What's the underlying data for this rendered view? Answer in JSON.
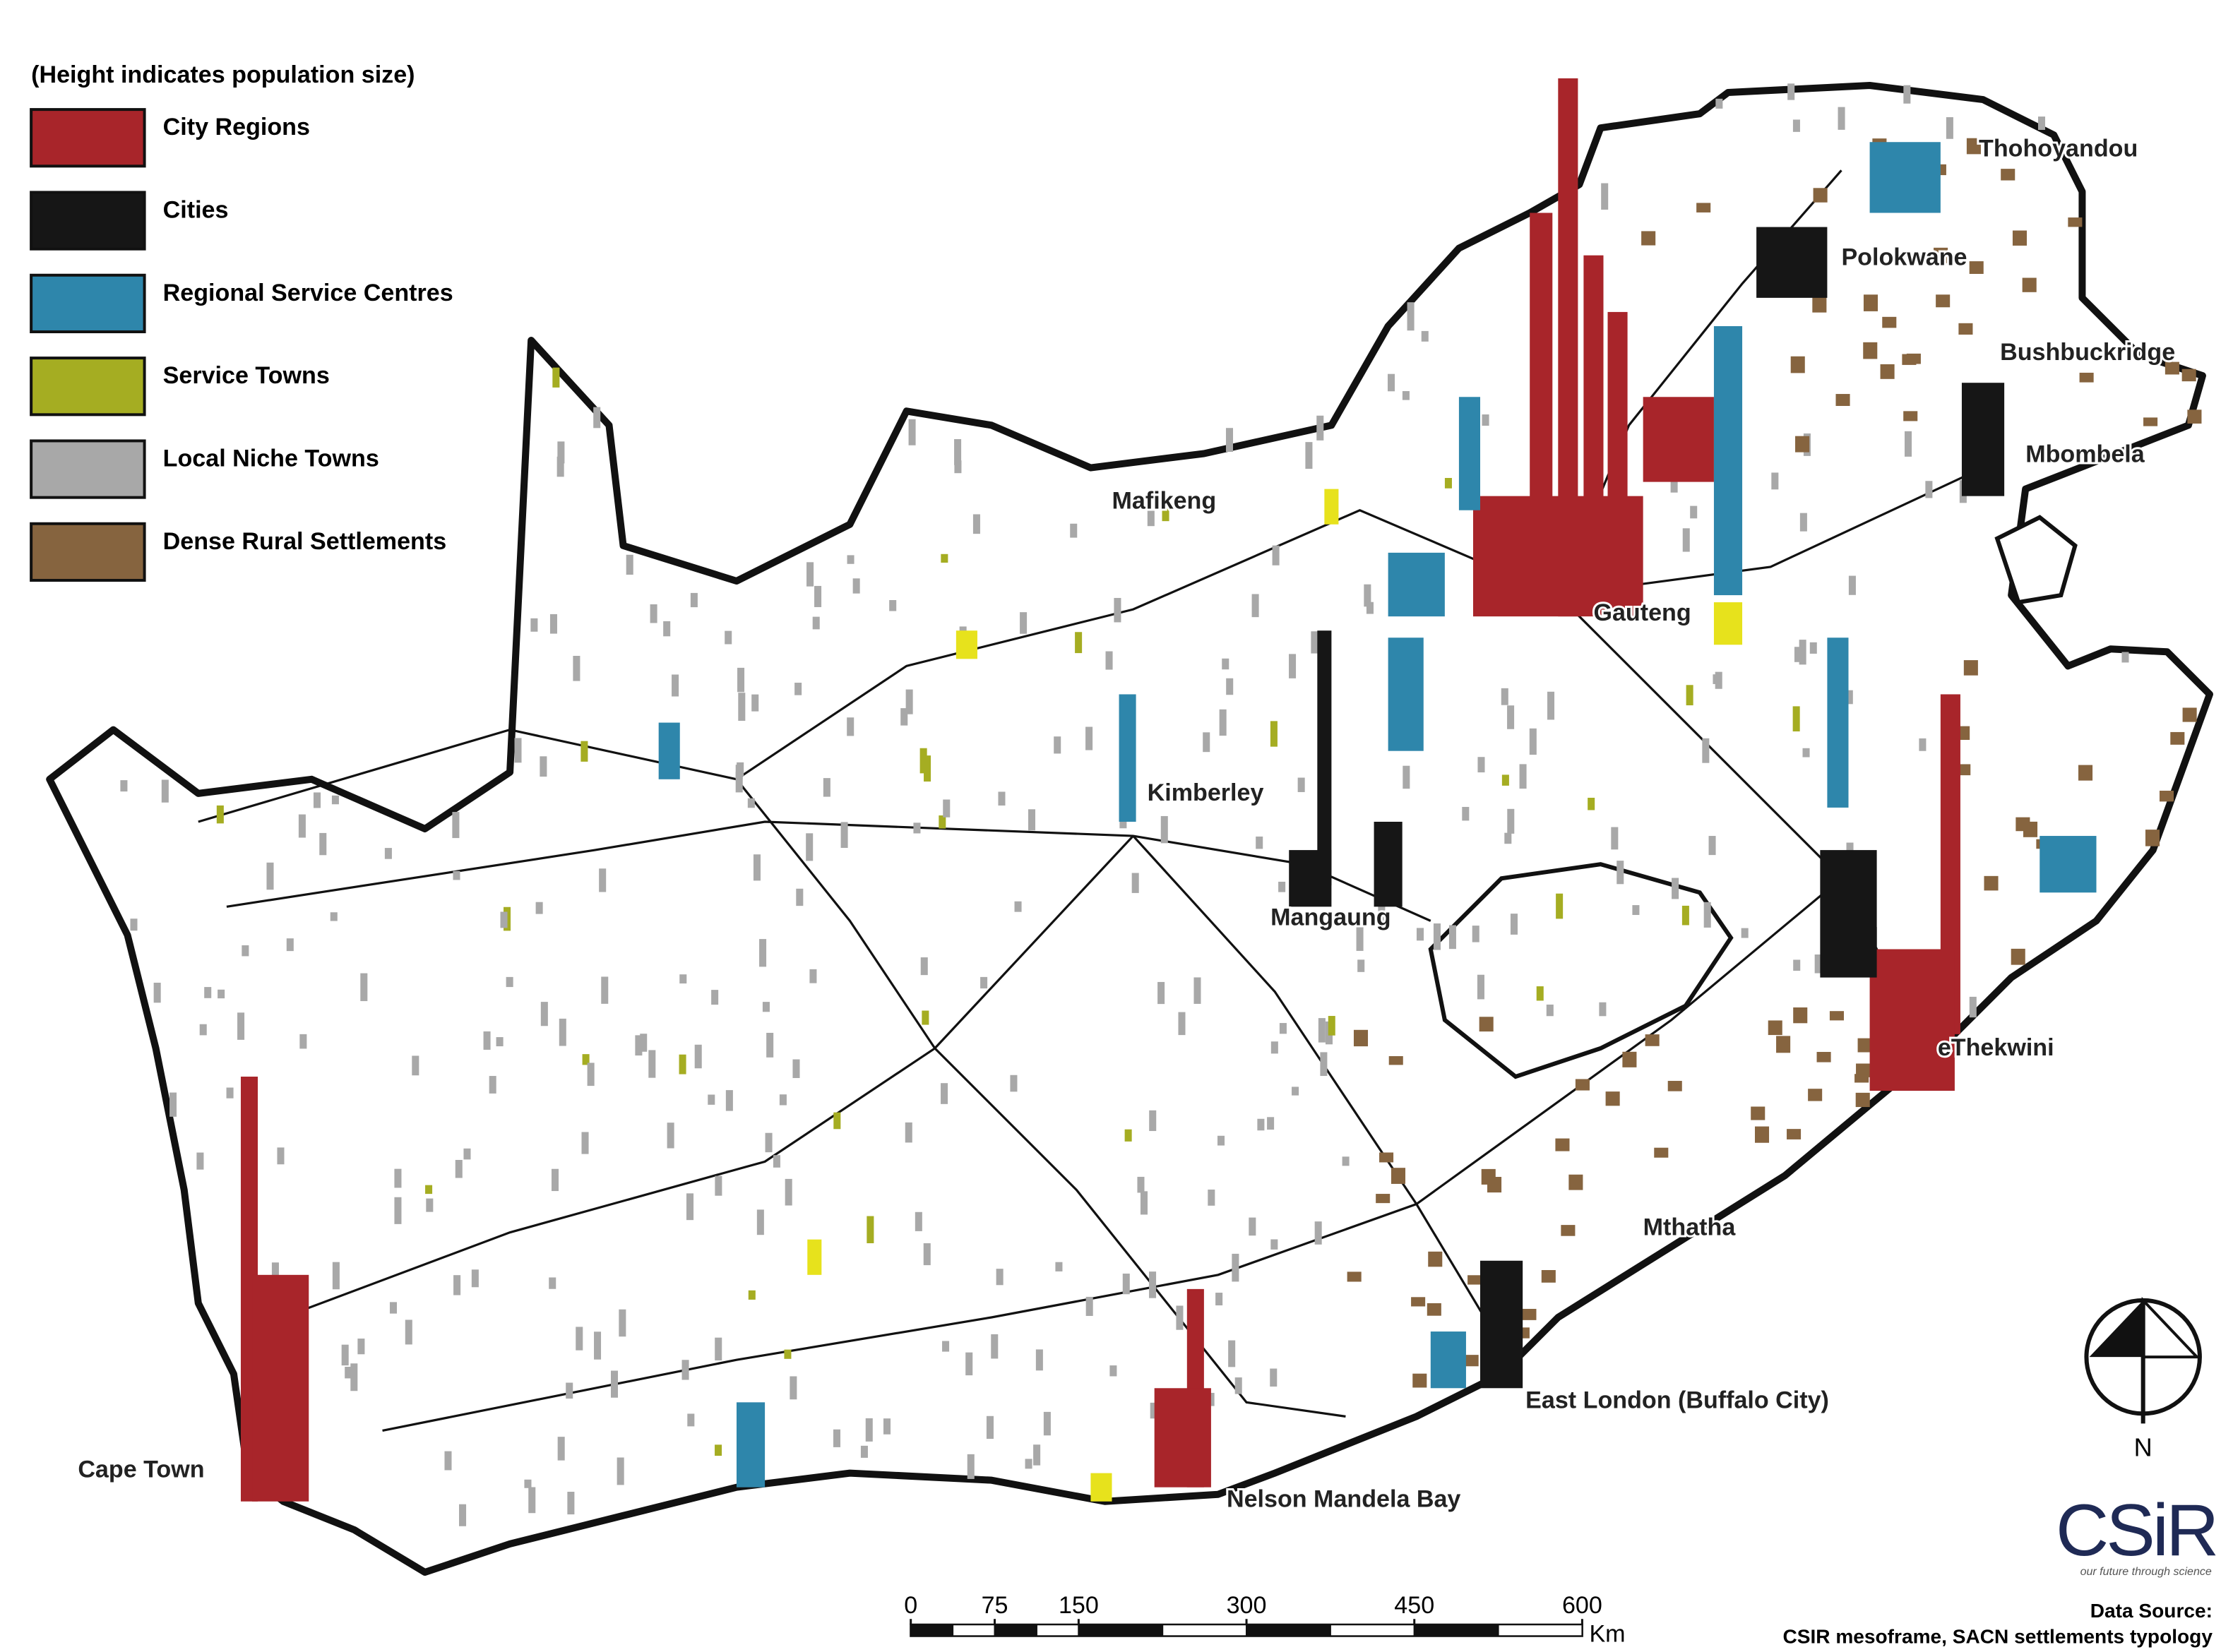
{
  "legend": {
    "title": "(Height indicates population size)",
    "items": [
      {
        "label": "City Regions",
        "color": "#a8252a"
      },
      {
        "label": "Cities",
        "color": "#161616"
      },
      {
        "label": "Regional Service Centres",
        "color": "#2e86ab"
      },
      {
        "label": "Service Towns",
        "color": "#a5ad22"
      },
      {
        "label": "Local Niche Towns",
        "color": "#a8a8a8"
      },
      {
        "label": "Dense Rural Settlements",
        "color": "#86643f"
      }
    ]
  },
  "places": [
    "Thohoyandou",
    "Polokwane",
    "Bushbuckridge",
    "Mbombela",
    "Mafikeng",
    "Gauteng",
    "Kimberley",
    "Mangaung",
    "eThekwini",
    "Mthatha",
    "East London (Buffalo City)",
    "Cape Town",
    "Nelson Mandela Bay"
  ],
  "scale_bar": {
    "ticks": [
      0,
      75,
      150,
      300,
      450,
      600
    ],
    "unit": "Km"
  },
  "north_arrow": {
    "label": "N"
  },
  "logo": {
    "name": "CSiR",
    "tagline": "our future through science"
  },
  "source": {
    "title": "Data Source:",
    "line": "CSIR mesoframe, SACN settlements typology"
  }
}
